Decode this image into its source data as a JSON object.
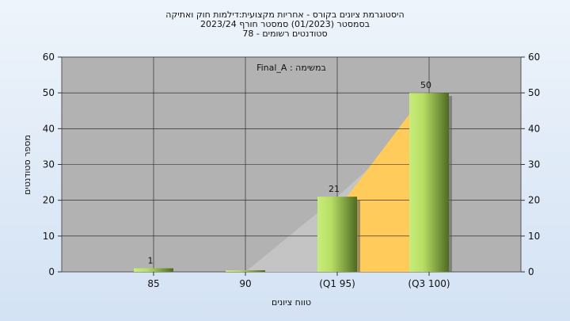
{
  "chart_data": {
    "type": "bar",
    "title_lines": [
      "היסטוגרמת ציונים בקורס - אחריות מקצועית:דילמות חוק ואתיקה",
      "בסמסטר  (01/2023)  סמסטר חורף 2023/24",
      "סטודנטים רשומים - 78"
    ],
    "annotation": "במשימה : Final_A",
    "xlabel": "טווח ציונים",
    "ylabel": "מספר סטודנטים",
    "categories": [
      "85",
      "90",
      "(Q1 95)",
      "(Q3 100)"
    ],
    "values": [
      1,
      0,
      21,
      50
    ],
    "data_labels": [
      "1",
      "",
      "21",
      "50"
    ],
    "cumulative_area_values": [
      0,
      0,
      21,
      44
    ],
    "ylim": [
      0,
      60
    ],
    "yticks": [
      "0",
      "10",
      "20",
      "30",
      "40",
      "50",
      "60"
    ],
    "grid": true,
    "colors": {
      "plot_background": "#b2b2b2",
      "bar_light": "#c8ec7c",
      "bar_dark": "#4e6a22",
      "area_grey": "#c4c4c4",
      "area_yellow": "#ffcc5c"
    }
  }
}
